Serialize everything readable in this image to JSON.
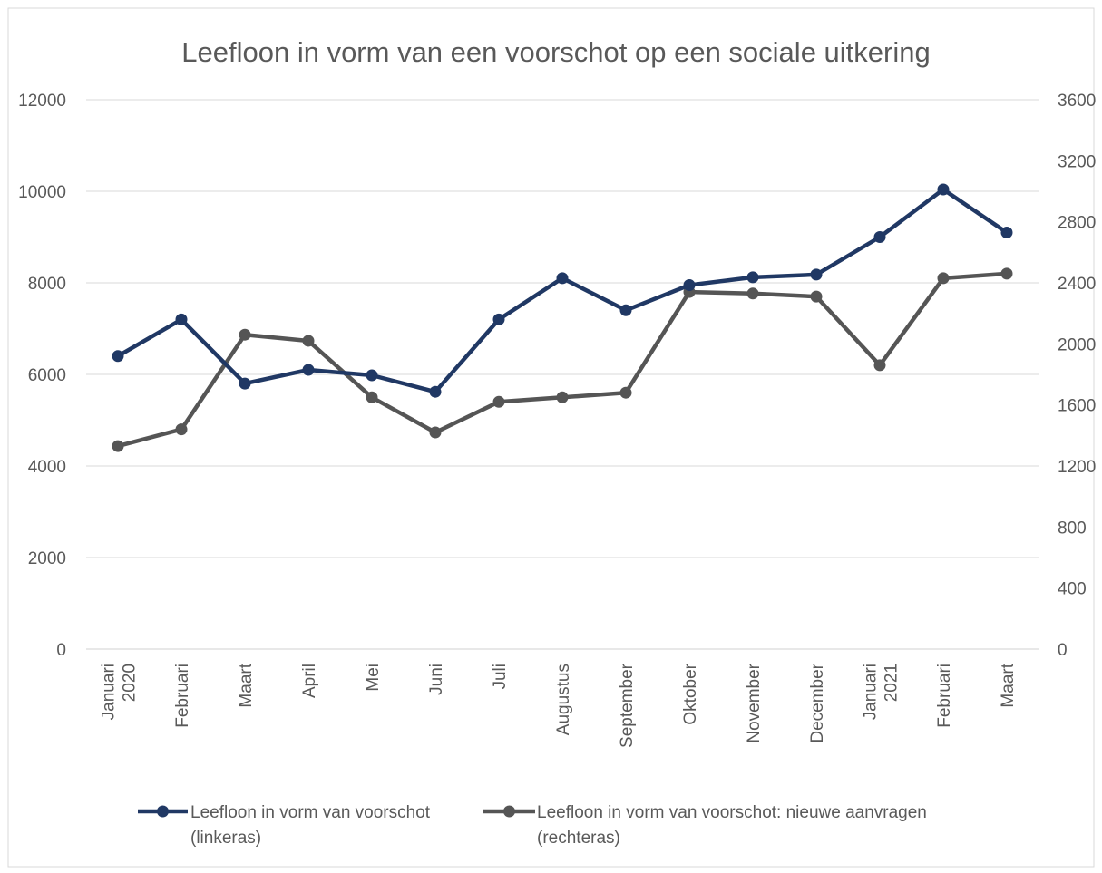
{
  "chart_data": {
    "type": "line",
    "title": "Leefloon in vorm van een voorschot op een sociale uitkering",
    "categories": [
      "Januari 2020",
      "Februari",
      "Maart",
      "April",
      "Mei",
      "Juni",
      "Juli",
      "Augustus",
      "September",
      "Oktober",
      "November",
      "December",
      "Januari 2021",
      "Februari",
      "Maart"
    ],
    "series": [
      {
        "name": "Leefloon in vorm van voorschot (linkeras)",
        "axis": "left",
        "color": "#203864",
        "values": [
          6400,
          7200,
          5800,
          6100,
          5980,
          5620,
          7200,
          8100,
          7400,
          7950,
          8120,
          8180,
          9000,
          10040,
          9100
        ]
      },
      {
        "name": "Leefloon in vorm van voorschot: nieuwe aanvragen (rechteras)",
        "axis": "right",
        "color": "#555555",
        "values": [
          1330,
          1440,
          2060,
          2020,
          1650,
          1420,
          1620,
          1650,
          1680,
          2340,
          2330,
          2310,
          1860,
          2430,
          2460
        ]
      }
    ],
    "y_left": {
      "min": 0,
      "max": 12000,
      "ticks": [
        "0",
        "2000",
        "4000",
        "6000",
        "8000",
        "10000",
        "12000"
      ]
    },
    "y_right": {
      "min": 0,
      "max": 3600,
      "ticks": [
        "0",
        "400",
        "800",
        "1200",
        "1600",
        "2000",
        "2400",
        "2800",
        "3200",
        "3600"
      ]
    },
    "grid": true,
    "legend": "bottom",
    "legend_labels": [
      [
        "Leefloon in vorm van voorschot",
        "(linkeras)"
      ],
      [
        "Leefloon in vorm van voorschot: nieuwe aanvragen",
        "(rechteras)"
      ]
    ],
    "xlabel": "",
    "ylabel": ""
  }
}
